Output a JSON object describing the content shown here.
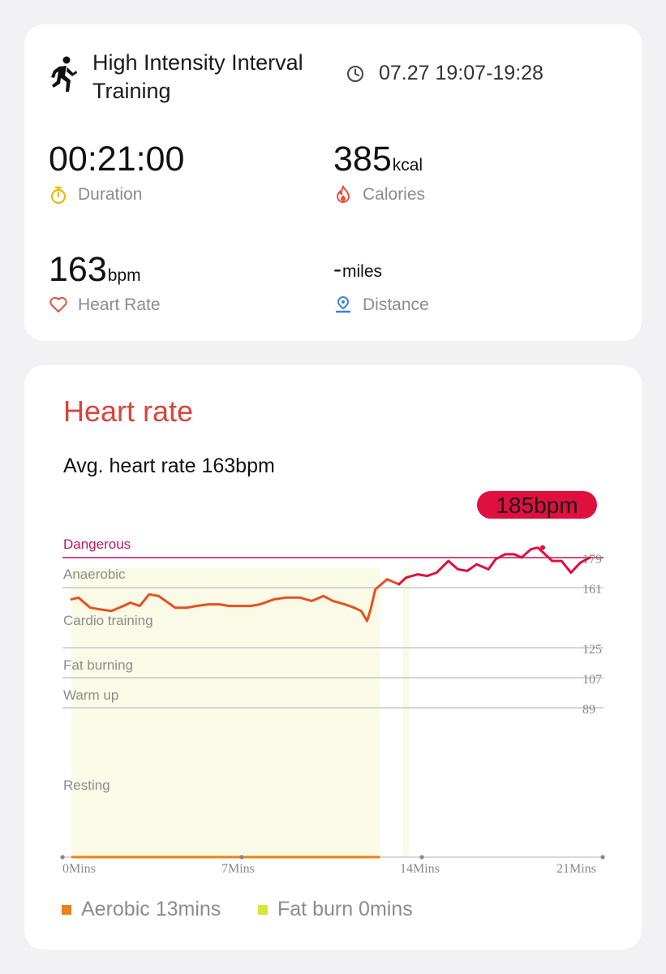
{
  "workout": {
    "name": "High Intensity Interval Training",
    "time_range": "07.27 19:07-19:28"
  },
  "metrics": {
    "duration": {
      "value": "00:21:00",
      "unit": "",
      "label": "Duration"
    },
    "calories": {
      "value": "385",
      "unit": "kcal",
      "label": "Calories"
    },
    "heart_rate": {
      "value": "163",
      "unit": "bpm",
      "label": "Heart Rate"
    },
    "distance": {
      "value": "-",
      "unit": "miles",
      "label": "Distance"
    }
  },
  "heart_rate_section": {
    "title": "Heart rate",
    "average": "Avg. heart rate 163bpm",
    "peak_label": "185bpm"
  },
  "legend": {
    "aerobic": "Aerobic 13mins",
    "fat_burn": "Fat burn 0mins"
  },
  "colors": {
    "title_red": "#d9443a",
    "line_orange": "#e8501e",
    "line_red": "#e0103e",
    "dangerous": "#c0145a",
    "aerobic": "#f07f16",
    "fat_burn": "#d8e43a",
    "zone_fill": "#fafbe6"
  },
  "chart_data": {
    "type": "line",
    "xlabel": "",
    "ylabel": "",
    "x_ticks": [
      "0Mins",
      "7Mins",
      "14Mins",
      "21Mins"
    ],
    "xlim": [
      0,
      21
    ],
    "zones": [
      {
        "name": "Dangerous",
        "threshold": 179,
        "tick_label": "179"
      },
      {
        "name": "Anaerobic",
        "threshold": 161,
        "tick_label": "161"
      },
      {
        "name": "Cardio training",
        "threshold": 125,
        "tick_label": "125"
      },
      {
        "name": "Fat burning",
        "threshold": 107,
        "tick_label": "107"
      },
      {
        "name": "Warm up",
        "threshold": 89,
        "tick_label": "89"
      },
      {
        "name": "Resting",
        "threshold": null,
        "tick_label": ""
      }
    ],
    "peak": {
      "x": 20.0,
      "y": 185,
      "label": "185bpm"
    },
    "series": [
      {
        "x": [
          0,
          0.3,
          0.8,
          1.2,
          1.7,
          2.2,
          2.5,
          2.9,
          3.3,
          3.7,
          4.0,
          4.4,
          4.9,
          5.3,
          5.8,
          6.3,
          6.7,
          7.2,
          7.6,
          8.0,
          8.6,
          9.1,
          9.7,
          10.2,
          10.7,
          11.1,
          11.6,
          12.0,
          12.3,
          12.55,
          12.7,
          12.9,
          13.4,
          13.9,
          14.2,
          14.7,
          15.1,
          15.5,
          16.0,
          16.4,
          16.8,
          17.2,
          17.7,
          18.0,
          18.4,
          18.8,
          19.1,
          19.5,
          19.8,
          20.1,
          20.4,
          20.8,
          21.2,
          21.6,
          22.0
        ],
        "y": [
          154,
          155,
          149,
          148,
          147,
          150,
          152,
          150,
          157,
          156,
          153,
          149,
          149,
          150,
          151,
          151,
          150,
          150,
          150,
          151,
          154,
          155,
          155,
          153,
          156,
          153,
          151,
          149,
          147,
          141,
          148,
          160,
          166,
          163,
          167,
          169,
          168,
          170,
          177,
          172,
          171,
          175,
          172,
          178,
          181,
          181,
          179,
          184,
          185,
          181,
          177,
          177,
          170,
          176,
          179
        ]
      }
    ]
  }
}
